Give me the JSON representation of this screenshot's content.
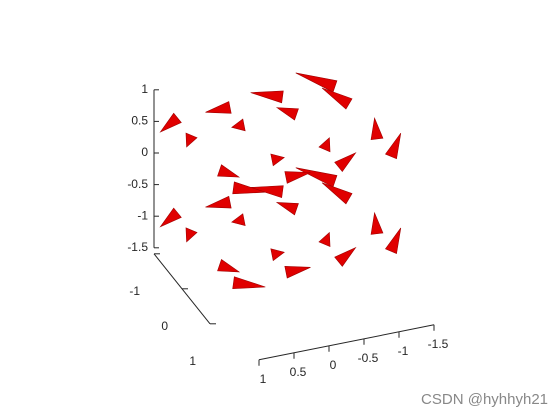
{
  "chart_data": {
    "type": "coneplot",
    "color": "#e00000",
    "x": [
      -1.5,
      -0.75,
      0,
      0.75,
      -1.5,
      -0.75,
      0,
      0.75,
      -1.5,
      -0.75,
      0,
      0.75,
      -1.5,
      -0.75,
      0,
      0.75,
      -1.5,
      -0.75,
      0,
      0.75,
      -1.5,
      -0.75,
      0,
      0.75,
      -1.5,
      -0.75,
      0,
      0.75,
      -1.5,
      -0.75,
      0,
      0.75
    ],
    "y": [
      -1,
      -1,
      -1,
      -1,
      -0.5,
      -0.5,
      -0.5,
      -0.5,
      0.5,
      0.5,
      0.5,
      0.5,
      1,
      1,
      1,
      1,
      -1,
      -1,
      -1,
      -1,
      -0.5,
      -0.5,
      -0.5,
      -0.5,
      0.5,
      0.5,
      0.5,
      0.5,
      1,
      1,
      1,
      1
    ],
    "z": [
      -1,
      -1,
      -1,
      -1,
      -1,
      -1,
      -1,
      -1,
      -1,
      -1,
      -1,
      -1,
      -1,
      -1,
      -1,
      -1,
      0.5,
      0.5,
      0.5,
      0.5,
      0.5,
      0.5,
      0.5,
      0.5,
      0.5,
      0.5,
      0.5,
      0.5,
      0.5,
      0.5,
      0.5,
      0.5
    ],
    "u": [
      1,
      1,
      1,
      1,
      0.5,
      0.5,
      0.5,
      0.5,
      -0.5,
      -0.5,
      -0.5,
      -0.5,
      -1,
      -1,
      -1,
      -1,
      1,
      1,
      1,
      1,
      0.5,
      0.5,
      0.5,
      0.5,
      -0.5,
      -0.5,
      -0.5,
      -0.5,
      -1,
      -1,
      -1,
      -1
    ],
    "v": [
      -1.5,
      -0.75,
      0,
      0.75,
      -1.5,
      -0.75,
      0,
      0.75,
      -1.5,
      -0.75,
      0,
      0.75,
      -1.5,
      -0.75,
      0,
      0.75,
      -1.5,
      -0.75,
      0,
      0.75,
      -1.5,
      -0.75,
      0,
      0.75,
      -1.5,
      -0.75,
      0,
      0.75,
      -1.5,
      -0.75,
      0,
      0.75
    ],
    "w": [
      0,
      0,
      0,
      0,
      0,
      0,
      0,
      0,
      0,
      0,
      0,
      0,
      0,
      0,
      0,
      0,
      0,
      0,
      0,
      0,
      0,
      0,
      0,
      0,
      0,
      0,
      0,
      0,
      0,
      0,
      0,
      0
    ],
    "xlim": [
      -1.5,
      1
    ],
    "xticks": [
      -1.5,
      -1,
      -0.5,
      0,
      0.5,
      1
    ],
    "ylim": [
      -1,
      1
    ],
    "yticks": [
      -1,
      0,
      1
    ],
    "zlim": [
      -1.5,
      1
    ],
    "zticks": [
      -1.5,
      -1,
      -0.5,
      0,
      0.5,
      1
    ],
    "watermark": "CSDN @hyhhyh21"
  }
}
